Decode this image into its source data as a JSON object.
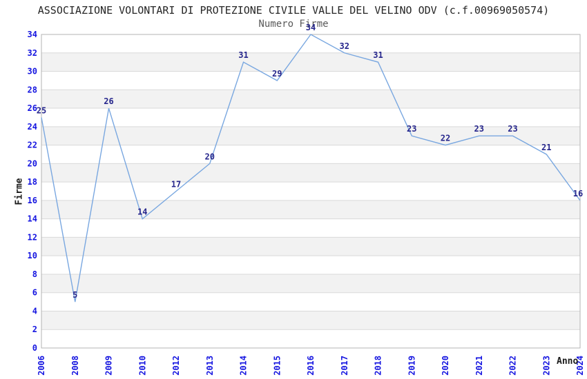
{
  "chart_data": {
    "type": "line",
    "title": "ASSOCIAZIONE VOLONTARI DI PROTEZIONE CIVILE VALLE DEL VELINO ODV (c.f.00969050574)",
    "subtitle": "Numero Firme",
    "xlabel": "Anno",
    "ylabel": "Firme",
    "categories": [
      "2006",
      "2008",
      "2009",
      "2010",
      "2012",
      "2013",
      "2014",
      "2015",
      "2016",
      "2017",
      "2018",
      "2019",
      "2020",
      "2021",
      "2022",
      "2023",
      "2024"
    ],
    "values": [
      25,
      5,
      26,
      14,
      17,
      20,
      31,
      29,
      34,
      32,
      31,
      23,
      22,
      23,
      23,
      21,
      16
    ],
    "ylim": [
      0,
      34
    ],
    "ytick_step": 2,
    "grid": true,
    "legend_position": "none",
    "xtick_rotation": -90,
    "background_bands": "alternating 2-unit horizontal stripes",
    "colors": {
      "line": "#79a7e0",
      "tick_label": "#1515e0",
      "data_label": "#26268c",
      "band": "#f2f2f2",
      "gridline": "#d9d9d9",
      "frame": "#b3b3b3",
      "title": "#262626",
      "subtitle": "#595959",
      "axis_title": "#1a1a1a"
    }
  }
}
